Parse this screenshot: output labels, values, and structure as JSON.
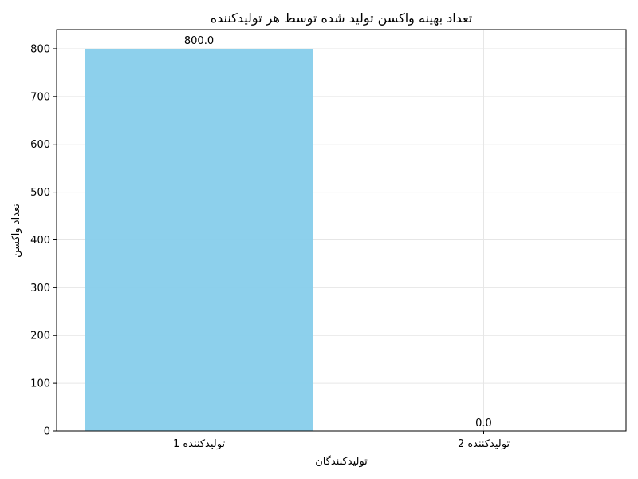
{
  "chart_data": {
    "type": "bar",
    "title": "تعداد بهینه واکسن تولید شده توسط هر تولیدکننده",
    "xlabel": "تولیدکنندگان",
    "ylabel": "تعداد واکسن",
    "categories": [
      "تولیدکننده 1",
      "تولیدکننده 2"
    ],
    "values": [
      800,
      0
    ],
    "value_labels": [
      "800.0",
      "0.0"
    ],
    "ylim": [
      0,
      840
    ],
    "yticks": [
      0,
      100,
      200,
      300,
      400,
      500,
      600,
      700,
      800
    ],
    "ytick_labels": [
      "0",
      "100",
      "200",
      "300",
      "400",
      "500",
      "600",
      "700",
      "800"
    ],
    "grid": true,
    "bar_color": "#87CEEB",
    "grid_color": "#e6e6e6",
    "axis_color": "#000000"
  }
}
